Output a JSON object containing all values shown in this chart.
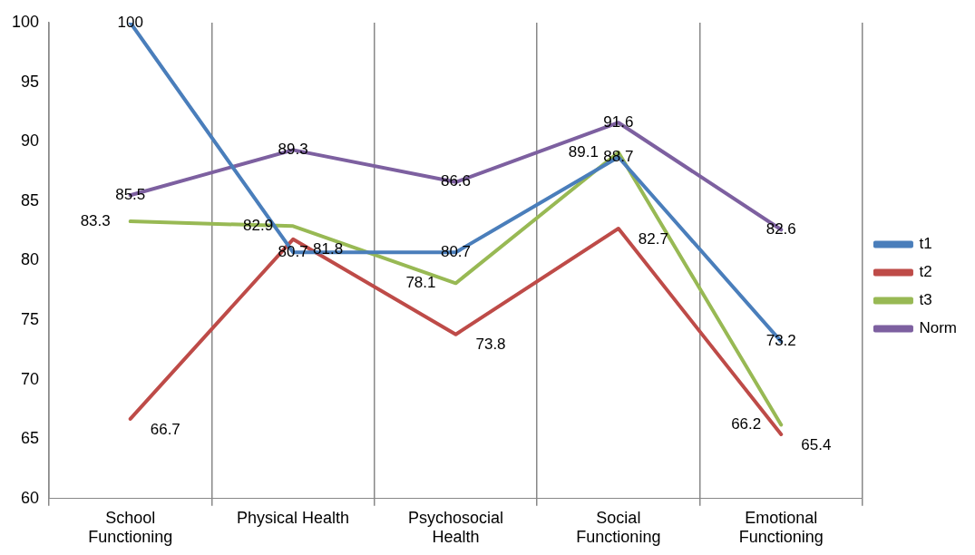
{
  "chart_data": {
    "type": "line",
    "categories": [
      "School Functioning",
      "Physical Health",
      "Psychosocial Health",
      "Social Functioning",
      "Emotional Functioning"
    ],
    "series": [
      {
        "name": "t1",
        "color": "#4a7ebb",
        "values": [
          100,
          80.7,
          80.7,
          88.7,
          73.2
        ]
      },
      {
        "name": "t2",
        "color": "#be4b48",
        "values": [
          66.7,
          81.8,
          73.8,
          82.7,
          65.4
        ]
      },
      {
        "name": "t3",
        "color": "#98b954",
        "values": [
          83.3,
          82.9,
          78.1,
          89.1,
          66.2
        ]
      },
      {
        "name": "Norm",
        "color": "#7d60a0",
        "values": [
          85.5,
          89.3,
          86.6,
          91.6,
          82.6
        ]
      }
    ],
    "ylim": [
      60,
      100
    ],
    "yticks": [
      60,
      65,
      70,
      75,
      80,
      85,
      90,
      95,
      100
    ],
    "grid": "x",
    "legend": "right",
    "data_labels": true,
    "marker": "none",
    "line_style": "solid"
  }
}
